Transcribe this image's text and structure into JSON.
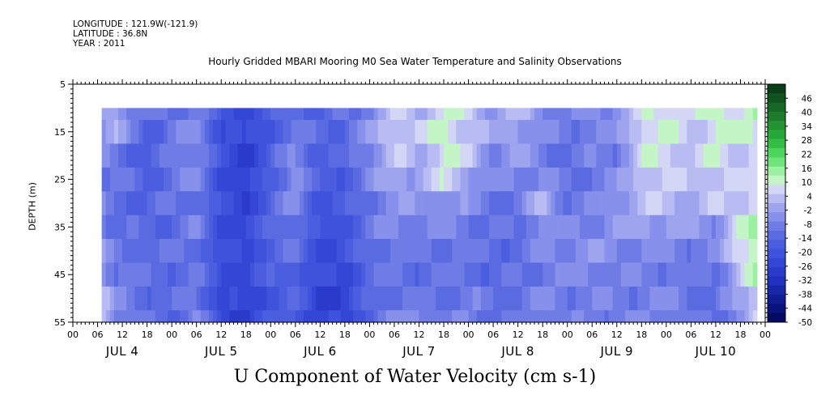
{
  "header": {
    "longitude": "LONGITUDE : 121.9W(-121.9)",
    "latitude": "LATITUDE : 36.8N",
    "year": "YEAR : 2011"
  },
  "chart_data": {
    "type": "heatmap",
    "title": "Hourly Gridded MBARI Mooring M0 Sea Water Temperature and Salinity Observations",
    "xlabel": "U Component of Water Velocity (cm s-1)",
    "ylabel": "DEPTH (m)",
    "yaxis": {
      "ticks": [
        5,
        15,
        25,
        35,
        45,
        55
      ],
      "ylim": [
        5,
        55
      ],
      "inverted": true
    },
    "xaxis": {
      "hour_ticks": [
        "00",
        "06",
        "12",
        "18",
        "00",
        "06",
        "12",
        "18",
        "00",
        "06",
        "12",
        "18",
        "00",
        "06",
        "12",
        "18",
        "00",
        "06",
        "12",
        "18",
        "00",
        "06",
        "12",
        "18",
        "00",
        "06",
        "12",
        "18",
        "00"
      ],
      "day_labels": [
        "JUL  4",
        "JUL  5",
        "JUL  6",
        "JUL  7",
        "JUL  8",
        "JUL  9",
        "JUL 10"
      ]
    },
    "colorbar": {
      "labels": [
        "46",
        "40",
        "34",
        "28",
        "22",
        "16",
        "10",
        "4",
        "-2",
        "-8",
        "-14",
        "-20",
        "-26",
        "-32",
        "-38",
        "-44",
        "-50"
      ],
      "range": [
        -50,
        52
      ],
      "colors": [
        "#0a3d1a",
        "#10521f",
        "#166726",
        "#1c7c2c",
        "#229233",
        "#28a83a",
        "#33bd47",
        "#4cd45c",
        "#6fe47c",
        "#9cf0a2",
        "#c4f5c6",
        "#d4d6f6",
        "#b9bcf2",
        "#9ea4ee",
        "#8790ea",
        "#6f7ce6",
        "#5a6be2",
        "#4b5ee0",
        "#3e52dc",
        "#3446d6",
        "#2a3bcc",
        "#2130bd",
        "#1826a8",
        "#101c92",
        "#08137c",
        "#030a62"
      ]
    },
    "data": {
      "x_hours_start": 7,
      "x_hours_end": 166,
      "depths": [
        10,
        15,
        20,
        25,
        30,
        35,
        40,
        45,
        50,
        55
      ],
      "time_profile": [
        {
          "h": 7,
          "u": [
            -2,
            -4,
            -6,
            -8,
            -8,
            -6,
            -4,
            -2,
            4,
            6
          ]
        },
        {
          "h": 10,
          "u": [
            2,
            0,
            -8,
            -10,
            -12,
            -12,
            -10,
            -8,
            -6,
            -6
          ]
        },
        {
          "h": 18,
          "u": [
            -14,
            -16,
            -18,
            -16,
            -14,
            -14,
            -12,
            -12,
            -12,
            -12
          ]
        },
        {
          "h": 24,
          "u": [
            -10,
            -10,
            -10,
            -10,
            -12,
            -12,
            -12,
            -12,
            -14,
            -14
          ]
        },
        {
          "h": 30,
          "u": [
            -8,
            -6,
            -4,
            -6,
            -8,
            -8,
            -10,
            -10,
            -8,
            -6
          ]
        },
        {
          "h": 36,
          "u": [
            -20,
            -20,
            -22,
            -22,
            -22,
            -22,
            -22,
            -22,
            -24,
            -24
          ]
        },
        {
          "h": 42,
          "u": [
            -22,
            -26,
            -28,
            -28,
            -26,
            -24,
            -24,
            -24,
            -26,
            -26
          ]
        },
        {
          "h": 48,
          "u": [
            -18,
            -18,
            -16,
            -16,
            -14,
            -14,
            -14,
            -16,
            -18,
            -18
          ]
        },
        {
          "h": 54,
          "u": [
            -10,
            -8,
            -6,
            -4,
            -6,
            -10,
            -12,
            -14,
            -16,
            -16
          ]
        },
        {
          "h": 60,
          "u": [
            -16,
            -14,
            -16,
            -18,
            -20,
            -22,
            -22,
            -24,
            -26,
            -26
          ]
        },
        {
          "h": 66,
          "u": [
            -12,
            -12,
            -14,
            -16,
            -18,
            -20,
            -22,
            -24,
            -26,
            -24
          ]
        },
        {
          "h": 72,
          "u": [
            -6,
            -4,
            -6,
            -8,
            -10,
            -10,
            -10,
            -12,
            -14,
            -14
          ]
        },
        {
          "h": 78,
          "u": [
            4,
            6,
            4,
            2,
            -4,
            -6,
            -8,
            -10,
            -10,
            -8
          ]
        },
        {
          "h": 84,
          "u": [
            2,
            4,
            0,
            -2,
            -6,
            -8,
            -12,
            -12,
            -10,
            -4
          ]
        },
        {
          "h": 90,
          "u": [
            8,
            10,
            10,
            8,
            -2,
            -6,
            -8,
            -10,
            -12,
            -12
          ]
        },
        {
          "h": 96,
          "u": [
            6,
            6,
            4,
            0,
            -6,
            -8,
            -10,
            -10,
            -8,
            -6
          ]
        },
        {
          "h": 102,
          "u": [
            -2,
            -4,
            -6,
            -8,
            -10,
            -12,
            -12,
            -14,
            -12,
            -12
          ]
        },
        {
          "h": 108,
          "u": [
            2,
            0,
            -2,
            -6,
            -10,
            -12,
            -12,
            -12,
            -10,
            -10
          ]
        },
        {
          "h": 114,
          "u": [
            -4,
            -6,
            -8,
            -6,
            2,
            -2,
            -6,
            -8,
            -6,
            -6
          ]
        },
        {
          "h": 120,
          "u": [
            -10,
            -10,
            -12,
            -12,
            -10,
            -8,
            -6,
            -6,
            -8,
            -10
          ]
        },
        {
          "h": 126,
          "u": [
            -6,
            -6,
            -8,
            -8,
            -8,
            -6,
            -4,
            -6,
            -8,
            -8
          ]
        },
        {
          "h": 132,
          "u": [
            -4,
            -6,
            -8,
            -6,
            -4,
            -4,
            -6,
            -8,
            -8,
            -8
          ]
        },
        {
          "h": 138,
          "u": [
            6,
            8,
            6,
            4,
            2,
            0,
            -6,
            -8,
            -8,
            -8
          ]
        },
        {
          "h": 144,
          "u": [
            10,
            10,
            8,
            6,
            4,
            -2,
            -6,
            -8,
            -6,
            -6
          ]
        },
        {
          "h": 150,
          "u": [
            6,
            4,
            4,
            2,
            0,
            -4,
            -8,
            -10,
            -10,
            -10
          ]
        },
        {
          "h": 156,
          "u": [
            12,
            10,
            8,
            6,
            4,
            -4,
            -8,
            -10,
            -12,
            -12
          ]
        },
        {
          "h": 162,
          "u": [
            10,
            8,
            6,
            4,
            4,
            8,
            10,
            4,
            -2,
            -4
          ]
        },
        {
          "h": 166,
          "u": [
            12,
            10,
            8,
            8,
            10,
            12,
            14,
            12,
            8,
            6
          ]
        }
      ]
    }
  }
}
